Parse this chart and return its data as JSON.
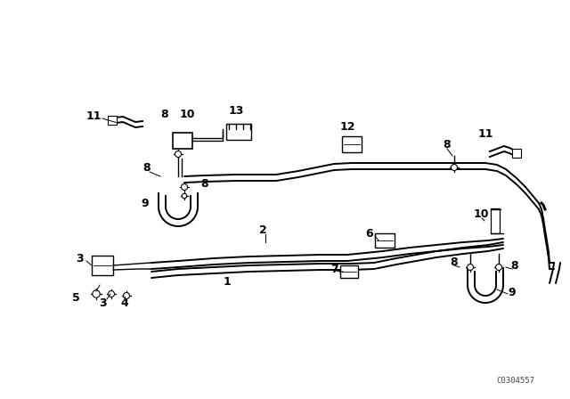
{
  "bg_color": "#ffffff",
  "line_color": "#000000",
  "watermark": "C0304557",
  "fig_width": 6.4,
  "fig_height": 4.48,
  "dpi": 100
}
